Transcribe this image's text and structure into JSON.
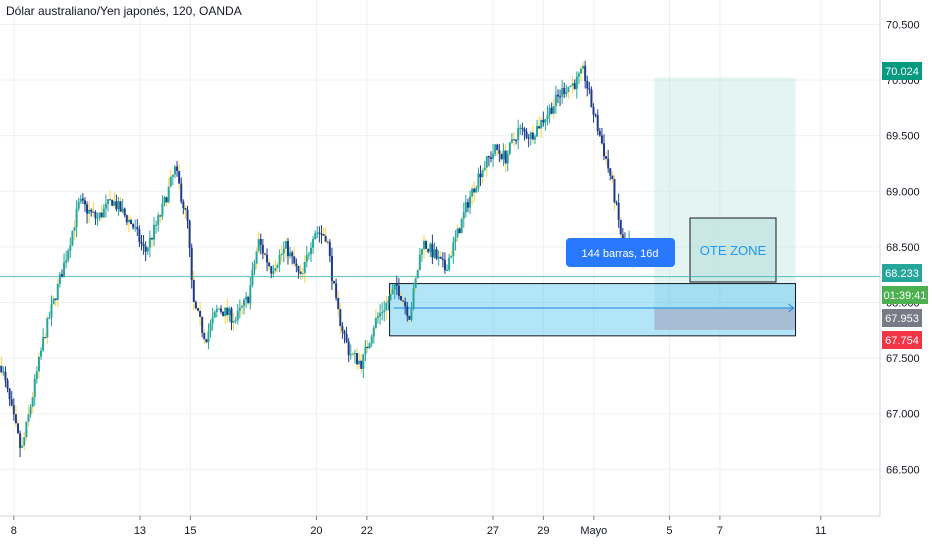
{
  "header": {
    "title": "Dólar australiano/Yen japonés, 120, OANDA"
  },
  "chart_data": {
    "type": "candlestick",
    "y_ticks": [
      66.5,
      67.0,
      67.5,
      68.0,
      68.5,
      69.0,
      69.5,
      70.0,
      70.5
    ],
    "y_tick_labels": [
      "66.500",
      "67.000",
      "67.500",
      "68.000",
      "68.500",
      "69.000",
      "69.500",
      "70.000",
      "70.500"
    ],
    "ylim": [
      66.08,
      70.72
    ],
    "x_ticks": [
      {
        "day": 0,
        "label": "8"
      },
      {
        "day": 5,
        "label": "13"
      },
      {
        "day": 7,
        "label": "15"
      },
      {
        "day": 12,
        "label": "20"
      },
      {
        "day": 14,
        "label": "22"
      },
      {
        "day": 19,
        "label": "27"
      },
      {
        "day": 21,
        "label": "29"
      },
      {
        "day": 23,
        "label": "Mayo"
      },
      {
        "day": 26,
        "label": "5"
      },
      {
        "day": 28,
        "label": "7"
      },
      {
        "day": 32,
        "label": "11"
      }
    ],
    "xlim_days": [
      -0.55,
      34.35
    ],
    "path_points": [
      [
        -0.55,
        67.48
      ],
      [
        0.3,
        66.65
      ],
      [
        1.2,
        67.7
      ],
      [
        2.0,
        68.35
      ],
      [
        2.6,
        68.9
      ],
      [
        3.3,
        68.75
      ],
      [
        3.9,
        68.92
      ],
      [
        4.7,
        68.7
      ],
      [
        5.2,
        68.45
      ],
      [
        5.8,
        68.78
      ],
      [
        6.4,
        69.2
      ],
      [
        6.9,
        68.7
      ],
      [
        7.1,
        68.0
      ],
      [
        7.6,
        67.68
      ],
      [
        8.1,
        67.95
      ],
      [
        8.8,
        67.85
      ],
      [
        9.3,
        68.05
      ],
      [
        9.7,
        68.55
      ],
      [
        10.2,
        68.3
      ],
      [
        10.8,
        68.5
      ],
      [
        11.4,
        68.2
      ],
      [
        11.9,
        68.65
      ],
      [
        12.4,
        68.6
      ],
      [
        12.8,
        67.95
      ],
      [
        13.3,
        67.55
      ],
      [
        13.8,
        67.45
      ],
      [
        14.3,
        67.82
      ],
      [
        14.8,
        68.0
      ],
      [
        15.2,
        68.15
      ],
      [
        15.7,
        67.88
      ],
      [
        16.2,
        68.55
      ],
      [
        16.6,
        68.45
      ],
      [
        17.1,
        68.3
      ],
      [
        17.6,
        68.62
      ],
      [
        18.0,
        68.9
      ],
      [
        18.5,
        69.18
      ],
      [
        19.1,
        69.38
      ],
      [
        19.5,
        69.3
      ],
      [
        20.0,
        69.55
      ],
      [
        20.5,
        69.5
      ],
      [
        20.9,
        69.62
      ],
      [
        21.4,
        69.78
      ],
      [
        21.8,
        69.92
      ],
      [
        22.3,
        69.98
      ],
      [
        22.6,
        70.08
      ],
      [
        22.9,
        69.78
      ],
      [
        23.3,
        69.45
      ],
      [
        23.7,
        69.1
      ],
      [
        24.2,
        68.45
      ],
      [
        24.4,
        68.52
      ],
      [
        24.6,
        68.3
      ]
    ],
    "last_candle_day": 24.6,
    "time_label": "144 barras, 16d",
    "zone_label": "OTE ZONE",
    "current_price": {
      "value": 68.233,
      "label": "68.233",
      "color": "#26a69a"
    },
    "countdown": {
      "label": "01:39:41"
    },
    "target_price": {
      "value": 70.024,
      "label": "70.024",
      "color": "#089981"
    },
    "entry_price": {
      "value": 67.953,
      "label": "67.953",
      "color": "#787b86"
    },
    "stop_price": {
      "value": 67.754,
      "label": "67.754",
      "color": "#f23645"
    },
    "colors": {
      "up": "#26a69a",
      "down": "#1e3a8a",
      "wick_accent": "#f5d24a",
      "box_blue": "#42bff0",
      "profit_fill": "#b2dfdb",
      "loss_fill": "#e6a5b0",
      "label_blue": "#2979ff"
    },
    "grid": true
  }
}
